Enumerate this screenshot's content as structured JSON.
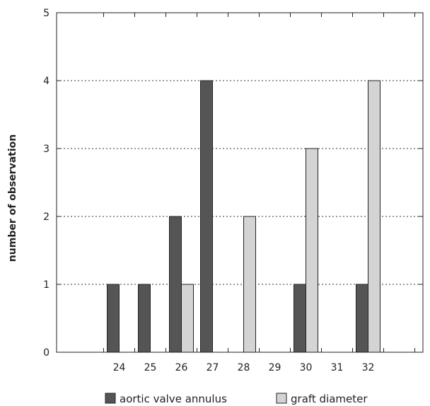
{
  "chart_data": {
    "type": "bar",
    "title": "",
    "xlabel": "",
    "ylabel": "number of observation",
    "ylim": [
      0,
      5
    ],
    "yticks": [
      "0",
      "1",
      "2",
      "3",
      "4",
      "5"
    ],
    "categories": [
      "24",
      "25",
      "26",
      "27",
      "28",
      "29",
      "30",
      "31",
      "32"
    ],
    "series": [
      {
        "name": "aortic valve annulus",
        "color": "#555555",
        "values": [
          1,
          1,
          2,
          4,
          0,
          0,
          1,
          0,
          1
        ]
      },
      {
        "name": "graft diameter",
        "color": "#d4d4d4",
        "values": [
          0,
          0,
          1,
          0,
          2,
          0,
          3,
          0,
          4
        ]
      }
    ],
    "grid": "horizontal dotted",
    "legend": "bottom"
  }
}
